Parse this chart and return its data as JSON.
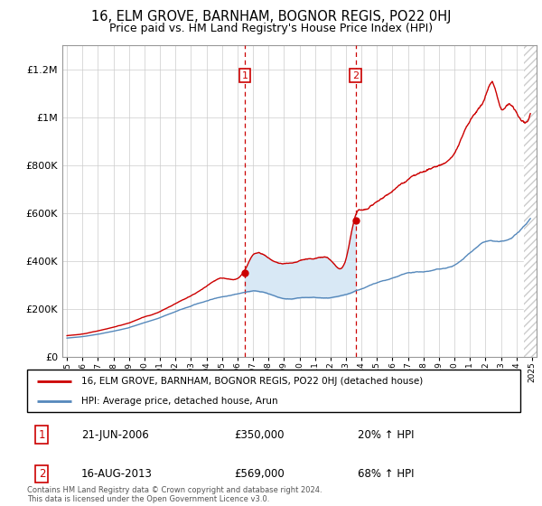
{
  "title": "16, ELM GROVE, BARNHAM, BOGNOR REGIS, PO22 0HJ",
  "subtitle": "Price paid vs. HM Land Registry's House Price Index (HPI)",
  "title_fontsize": 10.5,
  "subtitle_fontsize": 9,
  "legend_line1": "16, ELM GROVE, BARNHAM, BOGNOR REGIS, PO22 0HJ (detached house)",
  "legend_line2": "HPI: Average price, detached house, Arun",
  "sale1_date_label": "21-JUN-2006",
  "sale1_price": 350000,
  "sale1_hpi_pct": "20% ↑ HPI",
  "sale1_year": 2006.47,
  "sale2_date_label": "16-AUG-2013",
  "sale2_price": 569000,
  "sale2_hpi_pct": "68% ↑ HPI",
  "sale2_year": 2013.62,
  "red_color": "#cc0000",
  "blue_color": "#5588bb",
  "shade_color": "#d8e8f5",
  "footnote": "Contains HM Land Registry data © Crown copyright and database right 2024.\nThis data is licensed under the Open Government Licence v3.0.",
  "ylim": [
    0,
    1300000
  ],
  "xlim_start": 1994.7,
  "xlim_end": 2025.3
}
